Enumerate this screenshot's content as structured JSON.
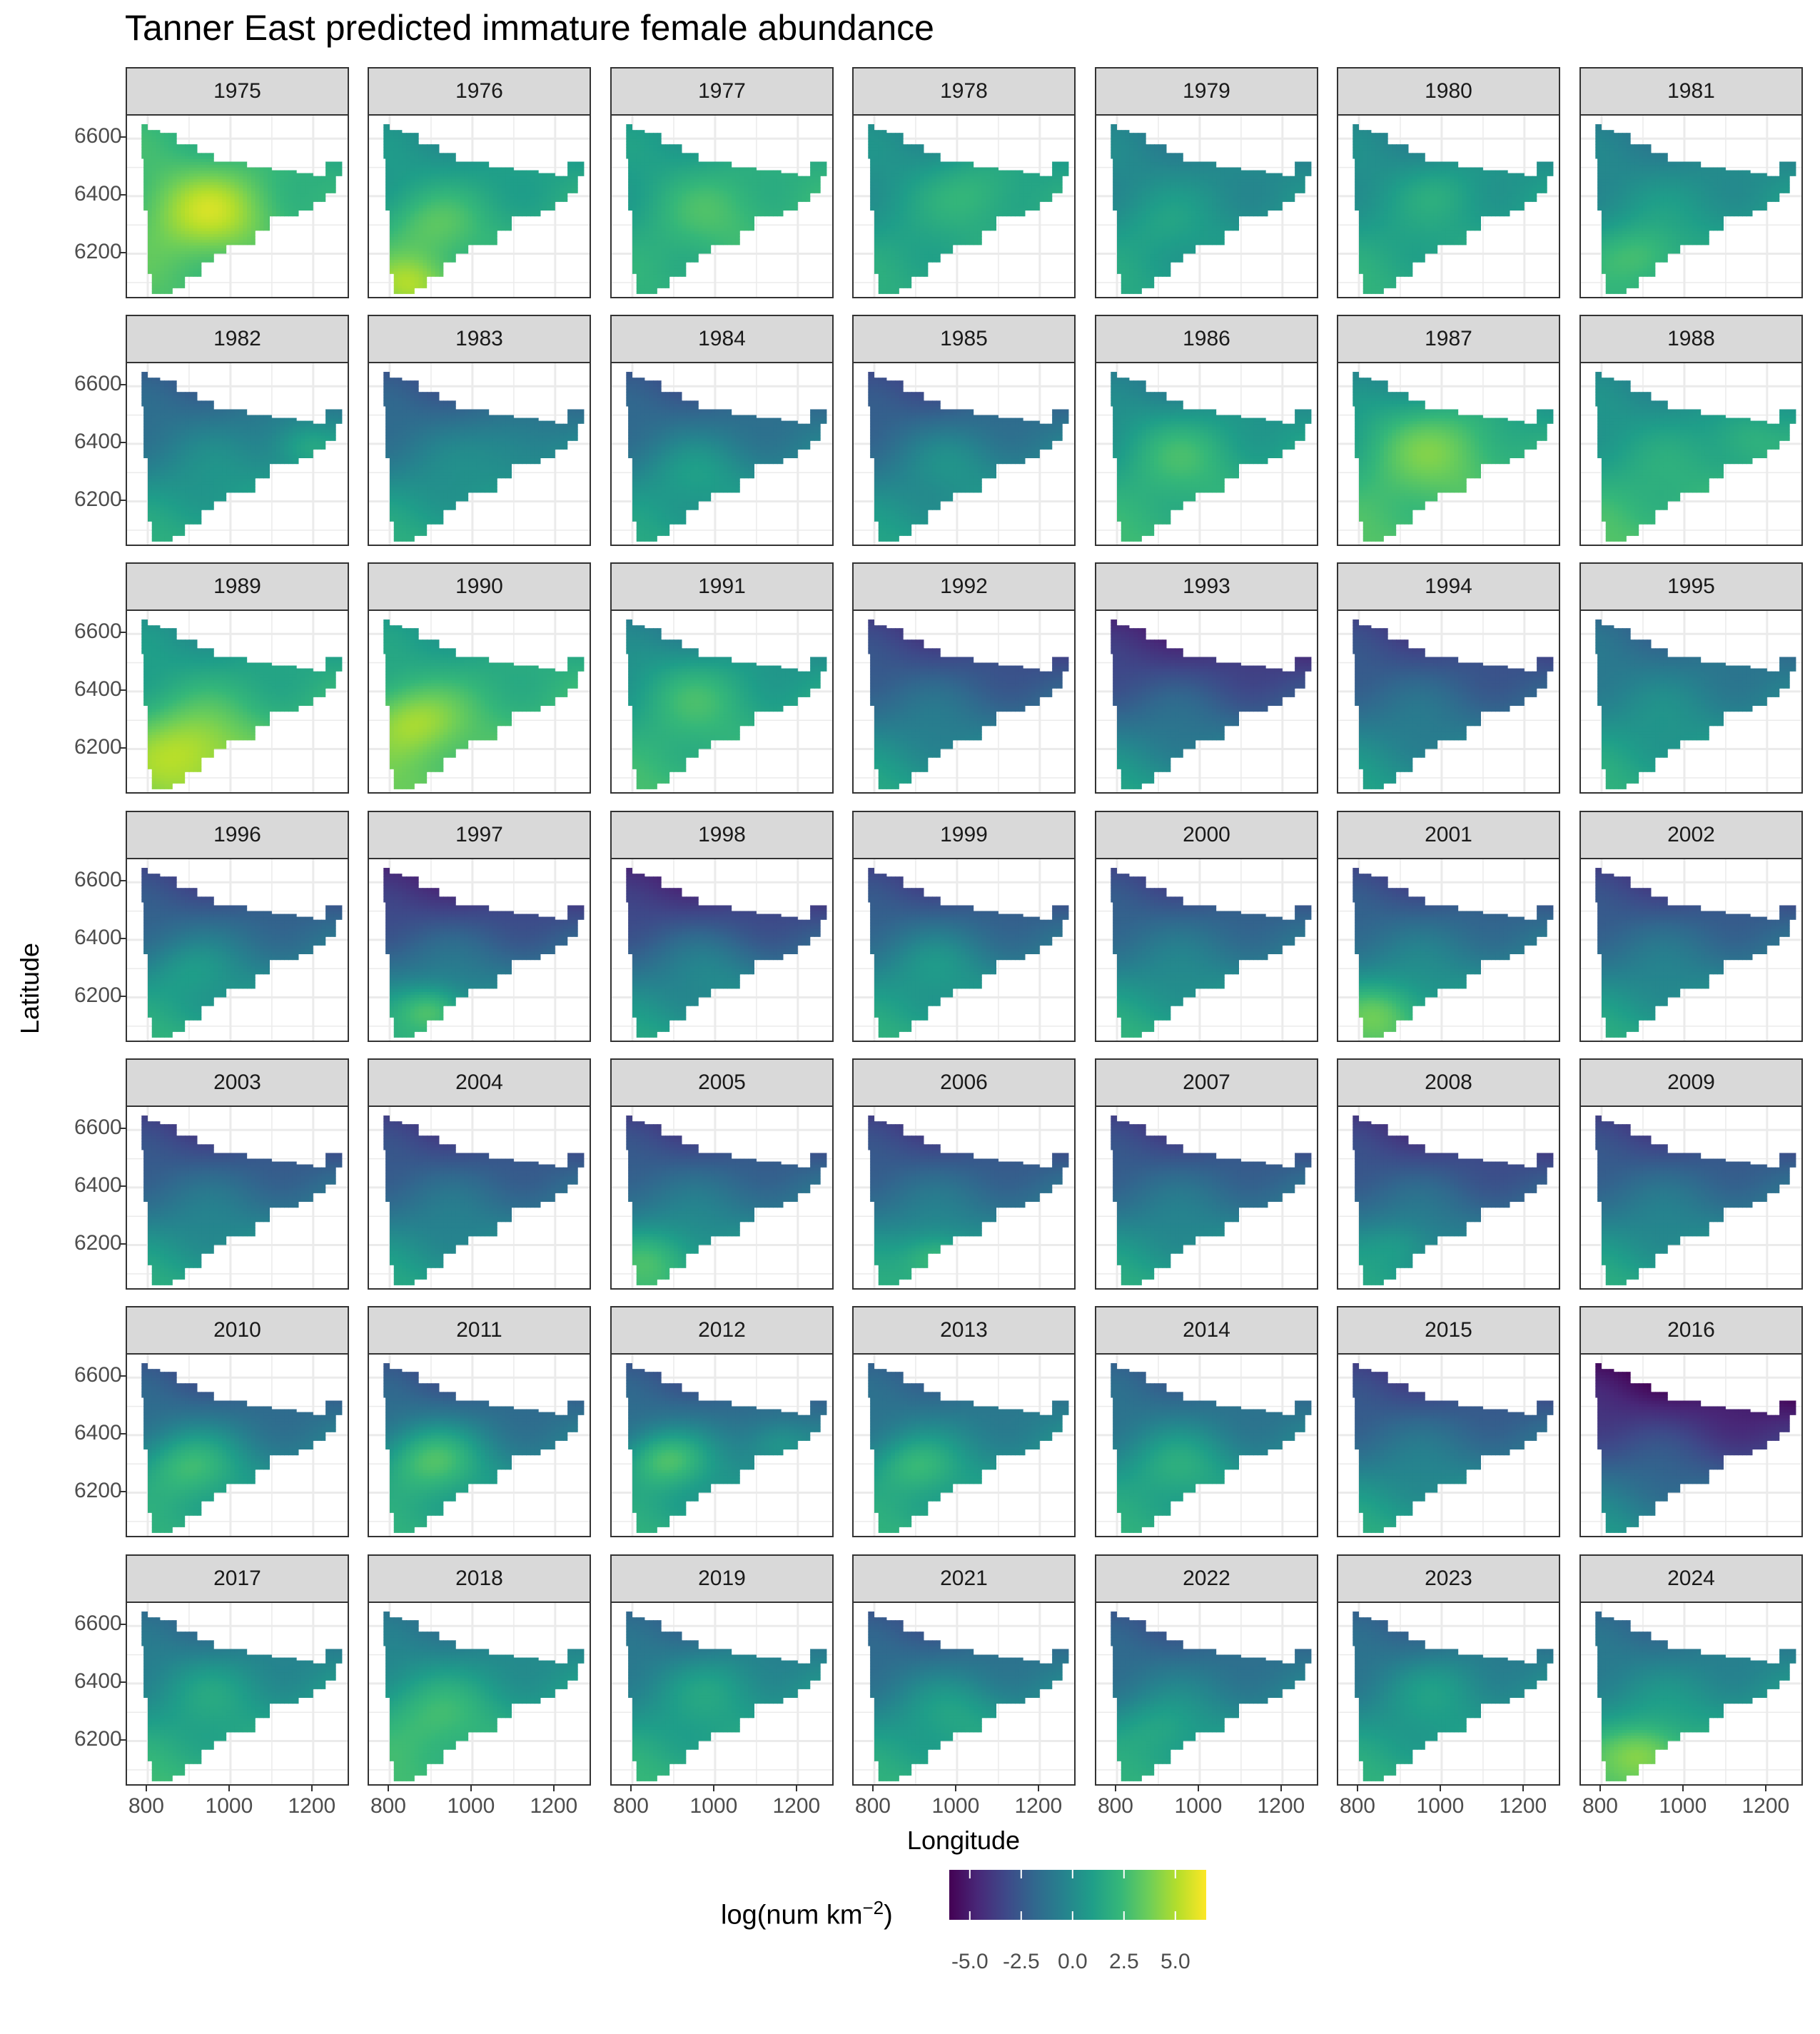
{
  "chart_data": {
    "type": "heatmap",
    "title": "Tanner East predicted immature female abundance",
    "xlabel": "Longitude",
    "ylabel": "Latitude",
    "facets": [
      "1975",
      "1976",
      "1977",
      "1978",
      "1979",
      "1980",
      "1981",
      "1982",
      "1983",
      "1984",
      "1985",
      "1986",
      "1987",
      "1988",
      "1989",
      "1990",
      "1991",
      "1992",
      "1993",
      "1994",
      "1995",
      "1996",
      "1997",
      "1998",
      "1999",
      "2000",
      "2001",
      "2002",
      "2003",
      "2004",
      "2005",
      "2006",
      "2007",
      "2008",
      "2009",
      "2010",
      "2011",
      "2012",
      "2013",
      "2014",
      "2015",
      "2016",
      "2017",
      "2018",
      "2019",
      "2021",
      "2022",
      "2023",
      "2024"
    ],
    "facet_columns": 7,
    "x_ticks": [
      800,
      1000,
      1200
    ],
    "x_tick_labels": [
      "800",
      "1000",
      "1200"
    ],
    "y_ticks": [
      6200,
      6400,
      6600
    ],
    "y_tick_labels": [
      "6200",
      "6400",
      "6600"
    ],
    "xlim": [
      750,
      1290
    ],
    "ylim": [
      6040,
      6680
    ],
    "grid": true,
    "legend": {
      "title": "log(num km",
      "title_superscript": "−2",
      "title_suffix": ")",
      "position": "bottom",
      "colormap": "viridis",
      "range": [
        -6.0,
        6.5
      ],
      "ticks": [
        -5.0,
        -2.5,
        0.0,
        2.5,
        5.0
      ],
      "tick_labels": [
        "-5.0",
        "-2.5",
        "0.0",
        "2.5",
        "5.0"
      ],
      "colors": [
        "#440154",
        "#482878",
        "#3e4989",
        "#31688e",
        "#26828e",
        "#1f9e89",
        "#35b779",
        "#6ece58",
        "#b5de2b",
        "#fde725"
      ]
    },
    "region_outline_lonlat": [
      [
        785,
        6650
      ],
      [
        800,
        6650
      ],
      [
        800,
        6630
      ],
      [
        830,
        6630
      ],
      [
        830,
        6620
      ],
      [
        870,
        6620
      ],
      [
        870,
        6580
      ],
      [
        920,
        6580
      ],
      [
        920,
        6550
      ],
      [
        960,
        6550
      ],
      [
        960,
        6520
      ],
      [
        1040,
        6520
      ],
      [
        1040,
        6500
      ],
      [
        1100,
        6500
      ],
      [
        1100,
        6490
      ],
      [
        1160,
        6490
      ],
      [
        1160,
        6480
      ],
      [
        1200,
        6480
      ],
      [
        1200,
        6470
      ],
      [
        1230,
        6470
      ],
      [
        1230,
        6520
      ],
      [
        1270,
        6520
      ],
      [
        1270,
        6470
      ],
      [
        1255,
        6470
      ],
      [
        1255,
        6410
      ],
      [
        1230,
        6410
      ],
      [
        1230,
        6380
      ],
      [
        1200,
        6380
      ],
      [
        1200,
        6350
      ],
      [
        1165,
        6350
      ],
      [
        1165,
        6330
      ],
      [
        1095,
        6330
      ],
      [
        1095,
        6280
      ],
      [
        1060,
        6280
      ],
      [
        1060,
        6230
      ],
      [
        990,
        6230
      ],
      [
        990,
        6200
      ],
      [
        960,
        6200
      ],
      [
        960,
        6170
      ],
      [
        930,
        6170
      ],
      [
        930,
        6120
      ],
      [
        890,
        6120
      ],
      [
        890,
        6080
      ],
      [
        860,
        6080
      ],
      [
        860,
        6060
      ],
      [
        810,
        6060
      ],
      [
        810,
        6130
      ],
      [
        800,
        6130
      ],
      [
        800,
        6350
      ],
      [
        790,
        6350
      ],
      [
        790,
        6530
      ],
      [
        785,
        6530
      ]
    ],
    "year_fields": {
      "1975": {
        "base": 2.0,
        "north": 0.0,
        "south": 1.5,
        "east": -0.5,
        "hotspots": [
          [
            950,
            6350,
            150,
            3.0
          ]
        ]
      },
      "1976": {
        "base": 1.0,
        "north": -1.0,
        "south": 2.5,
        "east": 0.5,
        "hotspots": [
          [
            900,
            6300,
            120,
            1.5
          ],
          [
            850,
            6100,
            100,
            2.5
          ]
        ]
      },
      "1977": {
        "base": 1.0,
        "north": -0.5,
        "south": 1.5,
        "east": 1.0,
        "hotspots": [
          [
            1000,
            6350,
            150,
            1.0
          ]
        ]
      },
      "1978": {
        "base": 0.8,
        "north": -1.0,
        "south": 1.5,
        "east": 0.8,
        "hotspots": [
          [
            1050,
            6420,
            120,
            1.2
          ]
        ]
      },
      "1979": {
        "base": 0.3,
        "north": -1.0,
        "south": 2.0,
        "east": 0.0,
        "hotspots": [
          [
            900,
            6300,
            100,
            0.5
          ]
        ]
      },
      "1980": {
        "base": 0.5,
        "north": -1.0,
        "south": 2.5,
        "east": 0.3,
        "hotspots": [
          [
            1000,
            6420,
            100,
            0.8
          ]
        ]
      },
      "1981": {
        "base": 0.5,
        "north": -1.5,
        "south": 2.5,
        "east": 0.3,
        "hotspots": [
          [
            900,
            6200,
            100,
            1.5
          ]
        ]
      },
      "1982": {
        "base": 0.3,
        "north": -3.0,
        "south": 2.5,
        "east": 1.0,
        "hotspots": [
          [
            1180,
            6400,
            80,
            1.5
          ]
        ]
      },
      "1983": {
        "base": 0.0,
        "north": -3.0,
        "south": 3.0,
        "east": 0.5,
        "hotspots": [
          [
            1100,
            6400,
            100,
            0.8
          ]
        ]
      },
      "1984": {
        "base": 0.0,
        "north": -3.0,
        "south": 2.5,
        "east": 0.5,
        "hotspots": [
          [
            950,
            6300,
            120,
            1.0
          ]
        ]
      },
      "1985": {
        "base": 0.0,
        "north": -3.5,
        "south": 2.0,
        "east": 0.8,
        "hotspots": [
          [
            1000,
            6350,
            120,
            0.8
          ]
        ]
      },
      "1986": {
        "base": 1.0,
        "north": -2.0,
        "south": 2.5,
        "east": 0.5,
        "hotspots": [
          [
            950,
            6380,
            150,
            1.5
          ]
        ]
      },
      "1987": {
        "base": 1.8,
        "north": -2.5,
        "south": 2.0,
        "east": 0.5,
        "hotspots": [
          [
            980,
            6400,
            180,
            2.5
          ]
        ]
      },
      "1988": {
        "base": 1.5,
        "north": -2.0,
        "south": 2.5,
        "east": 0.5,
        "hotspots": [
          [
            1150,
            6420,
            80,
            1.0
          ]
        ]
      },
      "1989": {
        "base": 2.0,
        "north": -2.0,
        "south": 2.5,
        "east": 0.5,
        "hotspots": [
          [
            900,
            6200,
            150,
            2.5
          ]
        ]
      },
      "1990": {
        "base": 2.0,
        "north": -1.5,
        "south": 2.5,
        "east": 0.5,
        "hotspots": [
          [
            850,
            6300,
            120,
            2.5
          ]
        ]
      },
      "1991": {
        "base": 1.5,
        "north": -2.5,
        "south": 2.0,
        "east": 0.5,
        "hotspots": [
          [
            950,
            6400,
            150,
            1.5
          ]
        ]
      },
      "1992": {
        "base": 0.0,
        "north": -4.0,
        "south": 2.5,
        "east": -0.5,
        "hotspots": []
      },
      "1993": {
        "base": -0.5,
        "north": -4.5,
        "south": 3.0,
        "east": -0.5,
        "hotspots": []
      },
      "1994": {
        "base": -0.3,
        "north": -3.5,
        "south": 2.5,
        "east": -0.5,
        "hotspots": []
      },
      "1995": {
        "base": 0.5,
        "north": -2.5,
        "south": 2.5,
        "east": -0.3,
        "hotspots": []
      },
      "1996": {
        "base": 0.3,
        "north": -4.0,
        "south": 3.0,
        "east": 0.0,
        "hotspots": [
          [
            900,
            6300,
            100,
            1.0
          ]
        ]
      },
      "1997": {
        "base": 0.0,
        "north": -5.0,
        "south": 3.0,
        "east": 0.0,
        "hotspots": [
          [
            900,
            6160,
            80,
            2.5
          ]
        ]
      },
      "1998": {
        "base": 0.0,
        "north": -5.0,
        "south": 2.5,
        "east": 0.0,
        "hotspots": [
          [
            1000,
            6300,
            120,
            0.8
          ]
        ]
      },
      "1999": {
        "base": 0.2,
        "north": -4.0,
        "south": 3.0,
        "east": 0.0,
        "hotspots": [
          [
            950,
            6320,
            120,
            1.0
          ]
        ]
      },
      "2000": {
        "base": 0.3,
        "north": -4.0,
        "south": 3.0,
        "east": 0.0,
        "hotspots": []
      },
      "2001": {
        "base": 0.3,
        "north": -4.0,
        "south": 3.5,
        "east": 0.0,
        "hotspots": [
          [
            850,
            6150,
            100,
            2.0
          ]
        ]
      },
      "2002": {
        "base": 0.0,
        "north": -4.0,
        "south": 3.0,
        "east": 0.0,
        "hotspots": []
      },
      "2003": {
        "base": 0.0,
        "north": -4.0,
        "south": 3.0,
        "east": 0.0,
        "hotspots": []
      },
      "2004": {
        "base": 0.0,
        "north": -4.0,
        "south": 2.5,
        "east": 0.0,
        "hotspots": []
      },
      "2005": {
        "base": 0.0,
        "north": -4.0,
        "south": 3.5,
        "east": 0.0,
        "hotspots": [
          [
            850,
            6160,
            100,
            1.5
          ]
        ]
      },
      "2006": {
        "base": 0.0,
        "north": -4.0,
        "south": 3.0,
        "east": 0.0,
        "hotspots": [
          [
            950,
            6160,
            80,
            2.0
          ]
        ]
      },
      "2007": {
        "base": 0.0,
        "north": -4.0,
        "south": 3.0,
        "east": 0.0,
        "hotspots": []
      },
      "2008": {
        "base": -0.3,
        "north": -4.0,
        "south": 3.0,
        "east": -0.5,
        "hotspots": [
          [
            900,
            6200,
            80,
            1.0
          ]
        ]
      },
      "2009": {
        "base": 0.0,
        "north": -4.0,
        "south": 3.0,
        "east": 0.0,
        "hotspots": []
      },
      "2010": {
        "base": 0.5,
        "north": -3.5,
        "south": 2.5,
        "east": 0.0,
        "hotspots": [
          [
            900,
            6300,
            120,
            2.5
          ]
        ]
      },
      "2011": {
        "base": 0.5,
        "north": -3.5,
        "south": 2.5,
        "east": 0.0,
        "hotspots": [
          [
            900,
            6320,
            120,
            3.0
          ]
        ]
      },
      "2012": {
        "base": 0.5,
        "north": -3.5,
        "south": 2.5,
        "east": 0.0,
        "hotspots": [
          [
            880,
            6320,
            100,
            3.0
          ],
          [
            1150,
            6380,
            80,
            1.5
          ]
        ]
      },
      "2013": {
        "base": 0.5,
        "north": -3.0,
        "south": 2.5,
        "east": 0.5,
        "hotspots": [
          [
            900,
            6300,
            100,
            2.0
          ]
        ]
      },
      "2014": {
        "base": 0.5,
        "north": -3.0,
        "south": 2.5,
        "east": 0.0,
        "hotspots": [
          [
            950,
            6300,
            120,
            1.5
          ]
        ]
      },
      "2015": {
        "base": 0.0,
        "north": -4.0,
        "south": 3.0,
        "east": 0.0,
        "hotspots": []
      },
      "2016": {
        "base": -1.0,
        "north": -5.0,
        "south": 3.0,
        "east": -1.0,
        "hotspots": []
      },
      "2017": {
        "base": 1.0,
        "north": -3.0,
        "south": 2.5,
        "east": 0.5,
        "hotspots": [
          [
            950,
            6400,
            120,
            0.8
          ]
        ]
      },
      "2018": {
        "base": 1.0,
        "north": -2.5,
        "south": 2.5,
        "east": 0.5,
        "hotspots": [
          [
            900,
            6300,
            150,
            1.5
          ]
        ]
      },
      "2019": {
        "base": 0.8,
        "north": -3.0,
        "south": 2.5,
        "east": 0.5,
        "hotspots": [
          [
            1000,
            6400,
            120,
            1.0
          ]
        ]
      },
      "2021": {
        "base": 0.5,
        "north": -3.5,
        "south": 2.5,
        "east": 0.5,
        "hotspots": [
          [
            1000,
            6300,
            120,
            1.0
          ]
        ]
      },
      "2022": {
        "base": 0.5,
        "north": -3.5,
        "south": 2.5,
        "east": 0.3,
        "hotspots": [
          [
            900,
            6250,
            100,
            1.0
          ]
        ]
      },
      "2023": {
        "base": 0.5,
        "north": -3.0,
        "south": 2.5,
        "east": 0.5,
        "hotspots": [
          [
            1000,
            6400,
            120,
            1.0
          ]
        ]
      },
      "2024": {
        "base": 0.8,
        "north": -3.0,
        "south": 3.0,
        "east": 0.5,
        "hotspots": [
          [
            900,
            6160,
            100,
            2.5
          ]
        ]
      }
    }
  }
}
